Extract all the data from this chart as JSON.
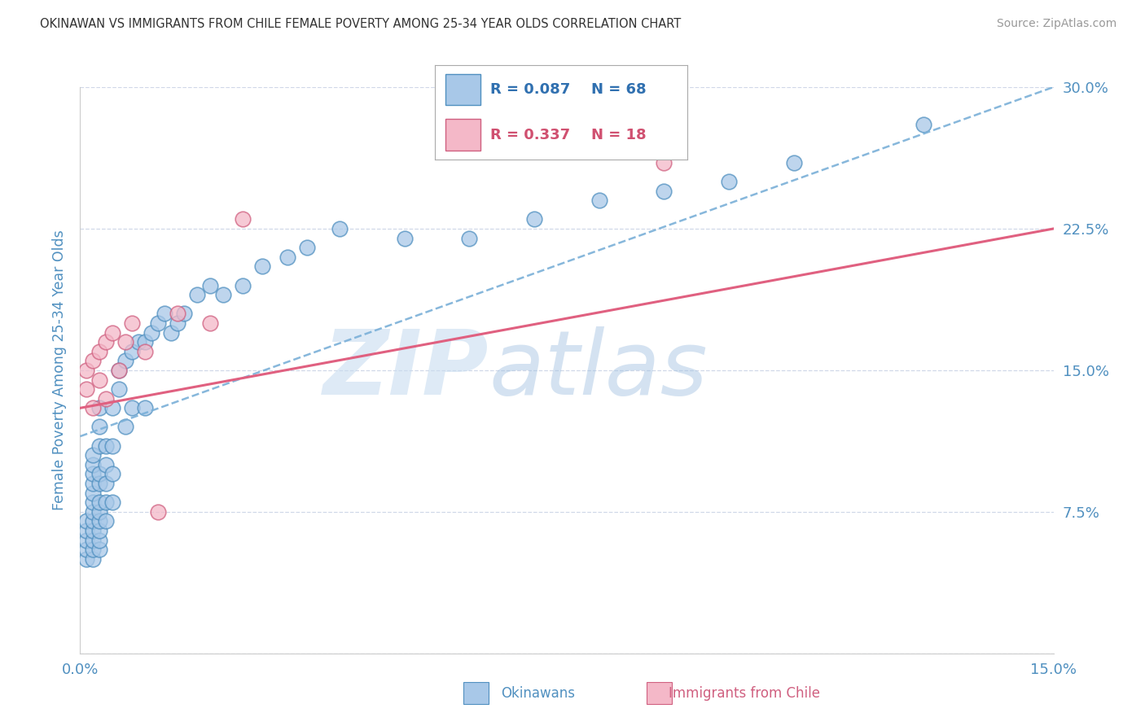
{
  "title": "OKINAWAN VS IMMIGRANTS FROM CHILE FEMALE POVERTY AMONG 25-34 YEAR OLDS CORRELATION CHART",
  "source": "Source: ZipAtlas.com",
  "ylabel": "Female Poverty Among 25-34 Year Olds",
  "xlim": [
    0.0,
    0.15
  ],
  "ylim": [
    0.0,
    0.3
  ],
  "xticks": [
    0.0,
    0.15
  ],
  "xtick_labels": [
    "0.0%",
    "15.0%"
  ],
  "yticks": [
    0.0,
    0.075,
    0.15,
    0.225,
    0.3
  ],
  "ytick_labels": [
    "",
    "7.5%",
    "15.0%",
    "22.5%",
    "30.0%"
  ],
  "blue_R": 0.087,
  "blue_N": 68,
  "pink_R": 0.337,
  "pink_N": 18,
  "blue_color": "#a8c8e8",
  "pink_color": "#f4b8c8",
  "blue_edge_color": "#5090c0",
  "pink_edge_color": "#d06080",
  "blue_line_color": "#7ab0d8",
  "pink_line_color": "#e06080",
  "legend_blue_text_color": "#3070b0",
  "legend_pink_text_color": "#d05070",
  "axis_label_color": "#5090c0",
  "tick_color": "#5090c0",
  "grid_color": "#d0d8e8",
  "background_color": "#ffffff",
  "watermark_zip": "ZIP",
  "watermark_atlas": "atlas",
  "blue_scatter_x": [
    0.001,
    0.001,
    0.001,
    0.001,
    0.001,
    0.002,
    0.002,
    0.002,
    0.002,
    0.002,
    0.002,
    0.002,
    0.002,
    0.002,
    0.002,
    0.002,
    0.002,
    0.003,
    0.003,
    0.003,
    0.003,
    0.003,
    0.003,
    0.003,
    0.003,
    0.003,
    0.003,
    0.003,
    0.004,
    0.004,
    0.004,
    0.004,
    0.004,
    0.005,
    0.005,
    0.005,
    0.005,
    0.006,
    0.006,
    0.007,
    0.007,
    0.008,
    0.008,
    0.009,
    0.01,
    0.01,
    0.011,
    0.012,
    0.013,
    0.014,
    0.015,
    0.016,
    0.018,
    0.02,
    0.022,
    0.025,
    0.028,
    0.032,
    0.035,
    0.04,
    0.05,
    0.06,
    0.07,
    0.08,
    0.09,
    0.1,
    0.11,
    0.13
  ],
  "blue_scatter_y": [
    0.05,
    0.055,
    0.06,
    0.065,
    0.07,
    0.05,
    0.055,
    0.06,
    0.065,
    0.07,
    0.075,
    0.08,
    0.085,
    0.09,
    0.095,
    0.1,
    0.105,
    0.055,
    0.06,
    0.065,
    0.07,
    0.075,
    0.08,
    0.09,
    0.095,
    0.11,
    0.12,
    0.13,
    0.07,
    0.08,
    0.09,
    0.1,
    0.11,
    0.08,
    0.095,
    0.11,
    0.13,
    0.14,
    0.15,
    0.12,
    0.155,
    0.13,
    0.16,
    0.165,
    0.13,
    0.165,
    0.17,
    0.175,
    0.18,
    0.17,
    0.175,
    0.18,
    0.19,
    0.195,
    0.19,
    0.195,
    0.205,
    0.21,
    0.215,
    0.225,
    0.22,
    0.22,
    0.23,
    0.24,
    0.245,
    0.25,
    0.26,
    0.28
  ],
  "pink_scatter_x": [
    0.001,
    0.001,
    0.002,
    0.002,
    0.003,
    0.003,
    0.004,
    0.004,
    0.005,
    0.006,
    0.007,
    0.008,
    0.01,
    0.012,
    0.015,
    0.02,
    0.025,
    0.09
  ],
  "pink_scatter_y": [
    0.14,
    0.15,
    0.13,
    0.155,
    0.145,
    0.16,
    0.135,
    0.165,
    0.17,
    0.15,
    0.165,
    0.175,
    0.16,
    0.075,
    0.18,
    0.175,
    0.23,
    0.26
  ],
  "blue_trend_x0": 0.0,
  "blue_trend_y0": 0.115,
  "blue_trend_x1": 0.15,
  "blue_trend_y1": 0.3,
  "pink_trend_x0": 0.0,
  "pink_trend_y0": 0.13,
  "pink_trend_x1": 0.15,
  "pink_trend_y1": 0.225
}
